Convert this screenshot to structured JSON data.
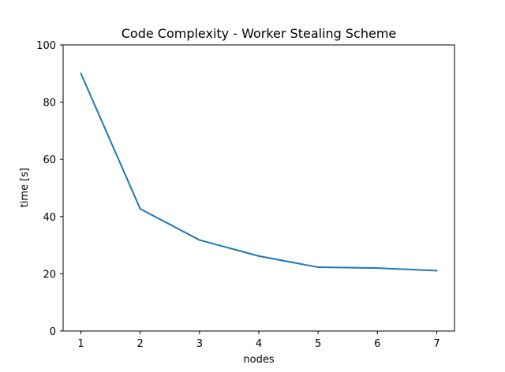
{
  "chart_data": {
    "type": "line",
    "title": "Code Complexity - Worker Stealing Scheme",
    "xlabel": "nodes",
    "ylabel": "time [s]",
    "x": [
      1,
      2,
      3,
      4,
      5,
      6,
      7
    ],
    "series": [
      {
        "values": [
          90.0,
          42.7,
          31.8,
          26.2,
          22.3,
          22.0,
          21.1
        ],
        "color": "#1f77b4"
      }
    ],
    "xlim": [
      0.7,
      7.3
    ],
    "ylim": [
      0,
      100
    ],
    "xticks": [
      1,
      2,
      3,
      4,
      5,
      6,
      7
    ],
    "yticks": [
      0,
      20,
      40,
      60,
      80,
      100
    ],
    "grid": false,
    "legend": "none"
  }
}
